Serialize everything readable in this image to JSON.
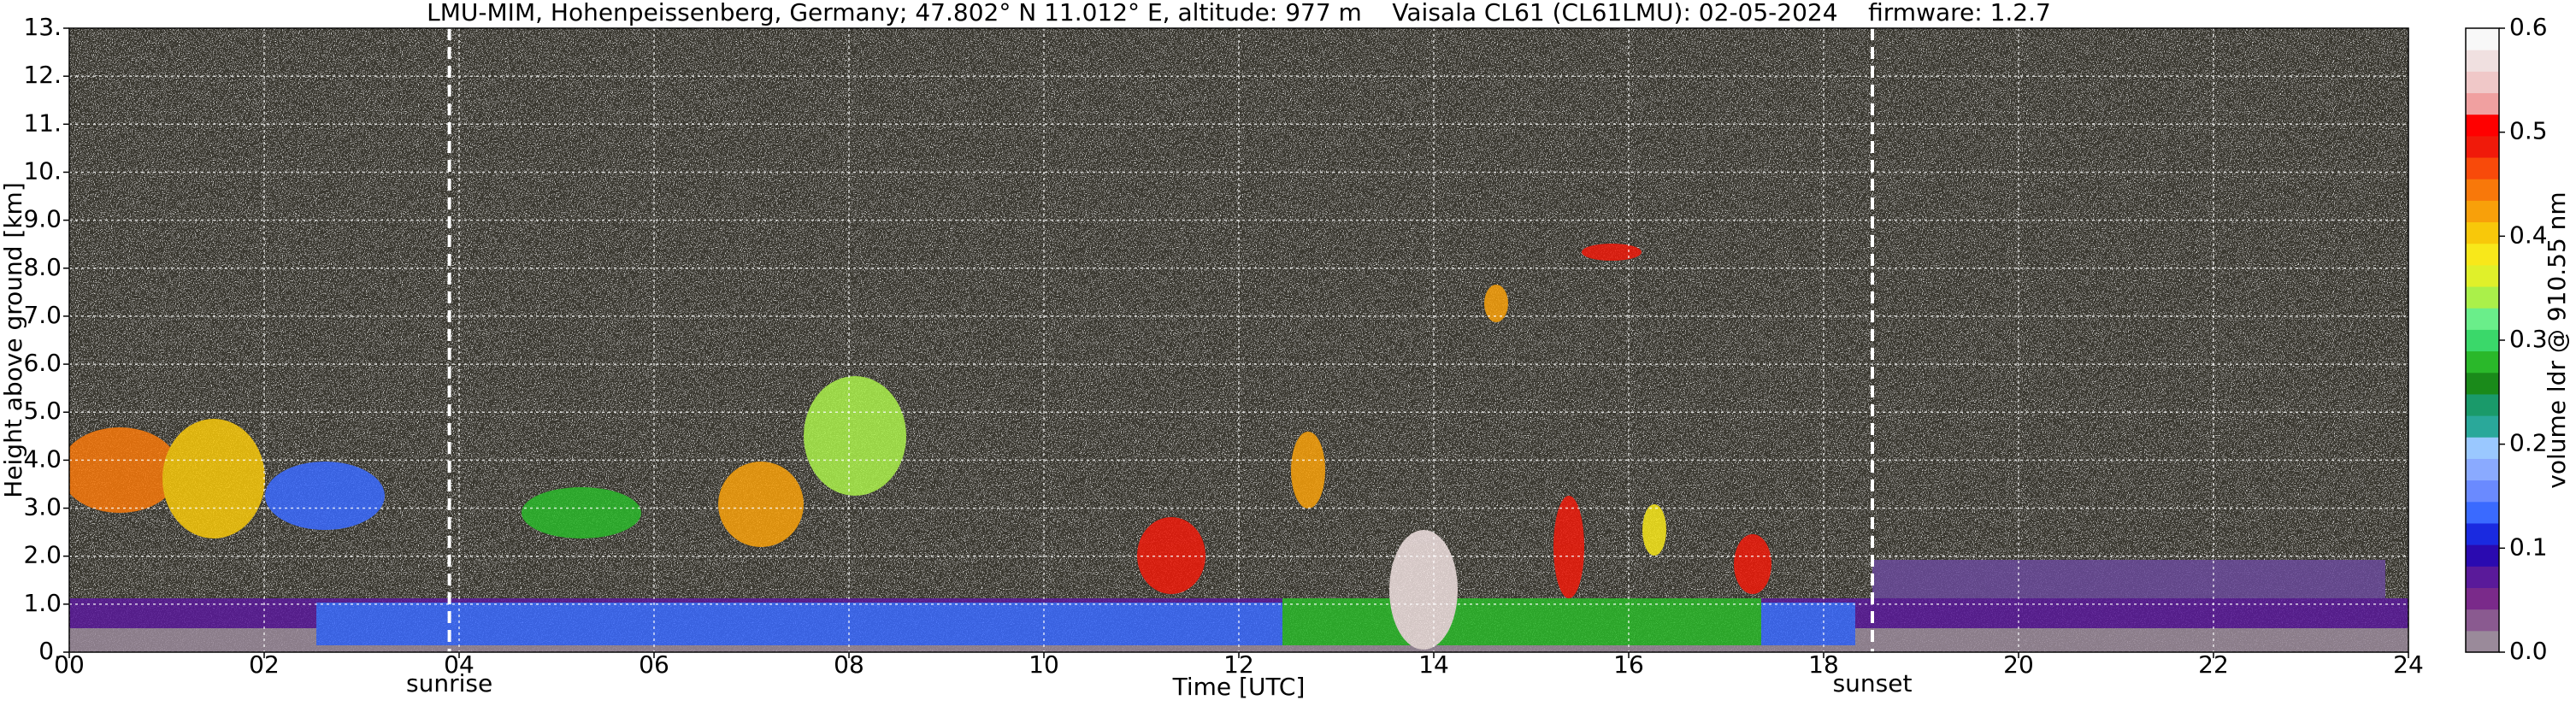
{
  "chart_data": {
    "type": "heatmap",
    "title": "LMU-MIM, Hohenpeissenberg, Germany; 47.802° N 11.012° E, altitude: 977 m    Vaisala CL61 (CL61LMU): 02-05-2024    firmware: 1.2.7",
    "xlabel": "Time [UTC]",
    "ylabel": "Height above ground [km]",
    "xlim": [
      0,
      24
    ],
    "xticks": [
      {
        "value": 0,
        "label": "00"
      },
      {
        "value": 2,
        "label": "02"
      },
      {
        "value": 4,
        "label": "04"
      },
      {
        "value": 6,
        "label": "06"
      },
      {
        "value": 8,
        "label": "08"
      },
      10,
      12,
      14,
      16,
      18,
      20,
      22,
      24
    ],
    "ylim": [
      0,
      13
    ],
    "yticks": [
      {
        "value": 0,
        "label": "0."
      },
      {
        "value": 1,
        "label": "1.0"
      },
      {
        "value": 2,
        "label": "2.0"
      },
      {
        "value": 3,
        "label": "3.0"
      },
      {
        "value": 4,
        "label": "4.0"
      },
      {
        "value": 5,
        "label": "5.0"
      },
      {
        "value": 6,
        "label": "6.0"
      },
      {
        "value": 7,
        "label": "7.0"
      },
      {
        "value": 8,
        "label": "8.0"
      },
      {
        "value": 9,
        "label": "9.0"
      },
      {
        "value": 10,
        "label": "10."
      },
      {
        "value": 11,
        "label": "11."
      },
      {
        "value": 12,
        "label": "12."
      },
      {
        "value": 13,
        "label": "13."
      }
    ],
    "grid": true,
    "annotations": [
      {
        "text": "sunrise",
        "x": 3.9
      },
      {
        "text": "sunset",
        "x": 18.5
      }
    ],
    "colorbar": {
      "label": "volume ldr @ 910.55 nm",
      "lim": [
        0,
        0.6
      ],
      "ticks": [
        {
          "value": 0,
          "label": "0.0"
        },
        0.1,
        0.2,
        0.3,
        0.4,
        0.5,
        0.6
      ],
      "colors": [
        "#9a8a9a",
        "#8a5a90",
        "#7a2a8a",
        "#5a1a9a",
        "#2a0ab0",
        "#1a2ae0",
        "#3a6aff",
        "#6a8aff",
        "#8aaaff",
        "#9ac8ff",
        "#2aa89a",
        "#1a9a6a",
        "#1a8a1a",
        "#2ab82a",
        "#3ad86a",
        "#6aee8a",
        "#aaf04a",
        "#e0f02a",
        "#f8e81a",
        "#f8c80a",
        "#f8a00a",
        "#f8780a",
        "#f84a0a",
        "#f01a0a",
        "#ff0000",
        "#f0a0a0",
        "#f0c8c8",
        "#f0e0e0",
        "#f8f8f8"
      ]
    }
  }
}
